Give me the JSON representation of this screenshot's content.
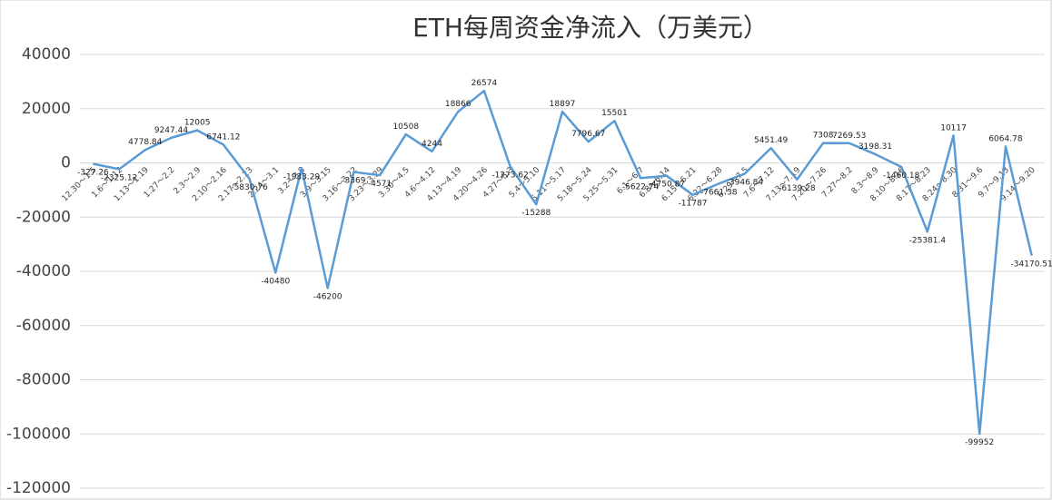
{
  "chart_data": {
    "type": "line",
    "title": "ETH每周资金净流入（万美元）",
    "categories": [
      "12.30～1.5",
      "1.6～1.12",
      "1.13～1.19",
      "1.27～2.2",
      "2.3～2.9",
      "2.10～2.16",
      "2.17～2.23",
      "2.24～3.1",
      "3.2～3.8",
      "3.9～3.15",
      "3.16～3.22",
      "3.23～3.29",
      "3.30～4.5",
      "4.6～4.12",
      "4.13～4.19",
      "4.20～4.26",
      "4.27～5.3",
      "5.4～5.10",
      "5.11～5.17",
      "5.18～5.24",
      "5.25～5.31",
      "6.1～6.7",
      "6.8～6.14",
      "6.15～6.21",
      "6.22～6.28",
      "6.29～7.5",
      "7.6～7.12",
      "7.13～7.19",
      "7.20～7.26",
      "7.27～8.2",
      "8.3～8.9",
      "8.10～8.16",
      "8.17～8.23",
      "8.24～8.30",
      "8.31～9.6",
      "9.7～9.13",
      "9.14～9.20"
    ],
    "values": [
      -327.26,
      -2325.12,
      4778.84,
      9247.44,
      12005,
      6741.12,
      -5830.76,
      -40480,
      -1933.29,
      -46200,
      -3369,
      -4571,
      10508,
      4244,
      18866,
      26574,
      -1273.62,
      -15288,
      18897,
      7796.67,
      15501,
      -5622.74,
      -4750.87,
      -11787,
      -7661.38,
      -3946.84,
      5451.49,
      -6139.28,
      7308,
      7269.53,
      3198.31,
      -1460.18,
      -25381.4,
      10117,
      -99952,
      6064.78,
      -34170.51
    ],
    "color": "#5b9bd5",
    "ylim": [
      -120000,
      40000
    ],
    "yticks": [
      -120000,
      -100000,
      -80000,
      -60000,
      -40000,
      -20000,
      0,
      20000,
      40000
    ],
    "grid": true
  }
}
